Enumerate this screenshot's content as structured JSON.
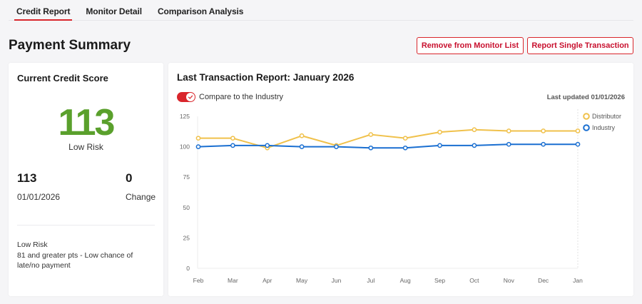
{
  "tabs": [
    {
      "label": "Credit Report",
      "active": true
    },
    {
      "label": "Monitor Detail",
      "active": false
    },
    {
      "label": "Comparison Analysis",
      "active": false
    }
  ],
  "page_title": "Payment Summary",
  "actions": {
    "remove_label": "Remove from Monitor List",
    "report_label": "Report Single Transaction"
  },
  "score_card": {
    "title": "Current Credit Score",
    "score": "113",
    "risk_label": "Low Risk",
    "current_value": "113",
    "current_date": "01/01/2026",
    "change_value": "0",
    "change_label": "Change",
    "description_title": "Low Risk",
    "description_text": "81 and greater pts - Low chance of late/no payment",
    "score_color": "#5aa02c"
  },
  "chart_card": {
    "title": "Last Transaction Report: January 2026",
    "toggle_label": "Compare to the Industry",
    "toggle_on": true,
    "last_updated": "Last updated 01/01/2026",
    "accent_color": "#d9262c"
  },
  "chart_data": {
    "type": "line",
    "title": "Last Transaction Report: January 2026",
    "xlabel": "",
    "ylabel": "",
    "categories": [
      "Feb",
      "Mar",
      "Apr",
      "May",
      "Jun",
      "Jul",
      "Aug",
      "Sep",
      "Oct",
      "Nov",
      "Dec",
      "Jan"
    ],
    "yticks": [
      0,
      25,
      50,
      75,
      100,
      125
    ],
    "ylim": [
      0,
      125
    ],
    "grid": false,
    "legend": "top-right",
    "hover_category": "Jan",
    "series": [
      {
        "name": "Distributor",
        "color": "#f0c14b",
        "values": [
          107,
          107,
          99,
          109,
          101,
          110,
          107,
          112,
          114,
          113,
          113,
          113
        ]
      },
      {
        "name": "Industry",
        "color": "#1a6fd1",
        "values": [
          100,
          101,
          101,
          100,
          100,
          99,
          99,
          101,
          101,
          102,
          102,
          102
        ]
      }
    ]
  }
}
